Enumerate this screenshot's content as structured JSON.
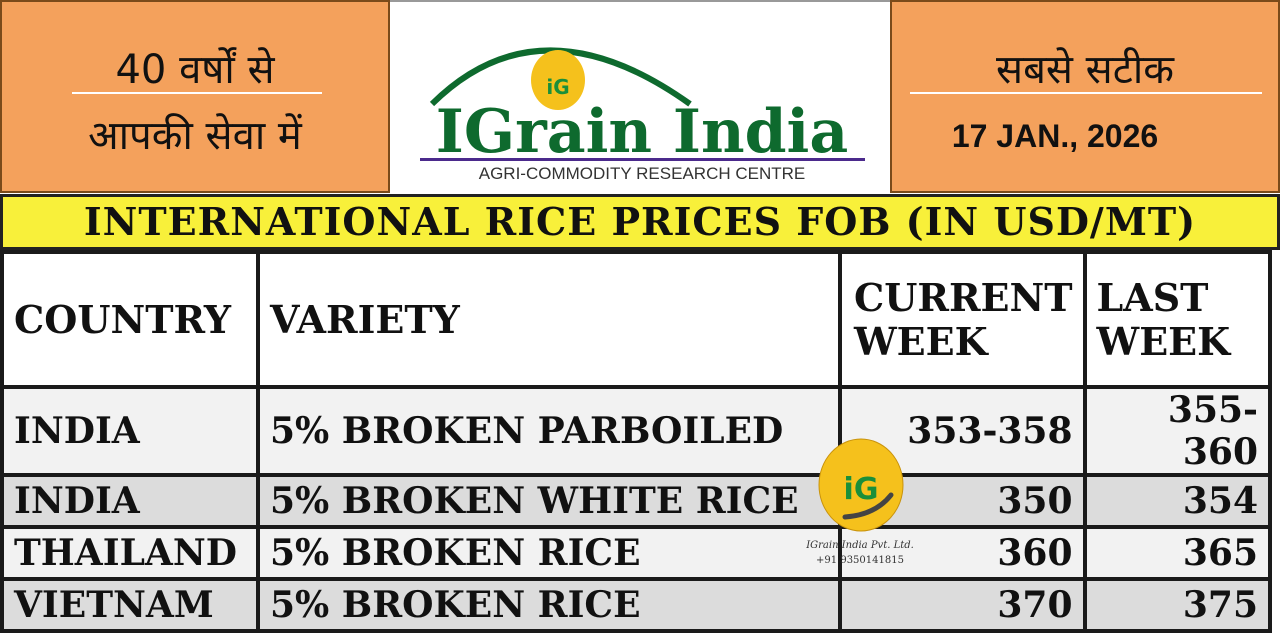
{
  "header": {
    "left_line1": "40 वर्षों से",
    "left_line2": "आपकी सेवा में",
    "right_line1": "सबसे सटीक",
    "date": "17 JAN., 2026",
    "logo": {
      "name": "IGrain India",
      "tagline": "AGRI-COMMODITY RESEARCH CENTRE",
      "badge": "iG"
    }
  },
  "title": "INTERNATIONAL RICE PRICES FOB (IN USD/MT)",
  "table": {
    "columns": [
      "COUNTRY",
      "VARIETY",
      "CURRENT WEEK",
      "LAST WEEK"
    ],
    "rows": [
      {
        "country": "INDIA",
        "variety": "5% BROKEN PARBOILED",
        "current": "353-358",
        "last": "355-360"
      },
      {
        "country": "INDIA",
        "variety": "5% BROKEN WHITE RICE",
        "current": "350",
        "last": "354"
      },
      {
        "country": "THAILAND",
        "variety": "5% BROKEN RICE",
        "current": "360",
        "last": "365"
      },
      {
        "country": "VIETNAM",
        "variety": "5% BROKEN RICE",
        "current": "370",
        "last": "375"
      }
    ]
  },
  "watermark": {
    "company": "IGrain India Pvt. Ltd.",
    "phone": "+91 9350141815"
  },
  "colors": {
    "orange": "#f4a15c",
    "yellow": "#f8f03a",
    "green": "#0e6a2e",
    "gold": "#f5c11c"
  }
}
